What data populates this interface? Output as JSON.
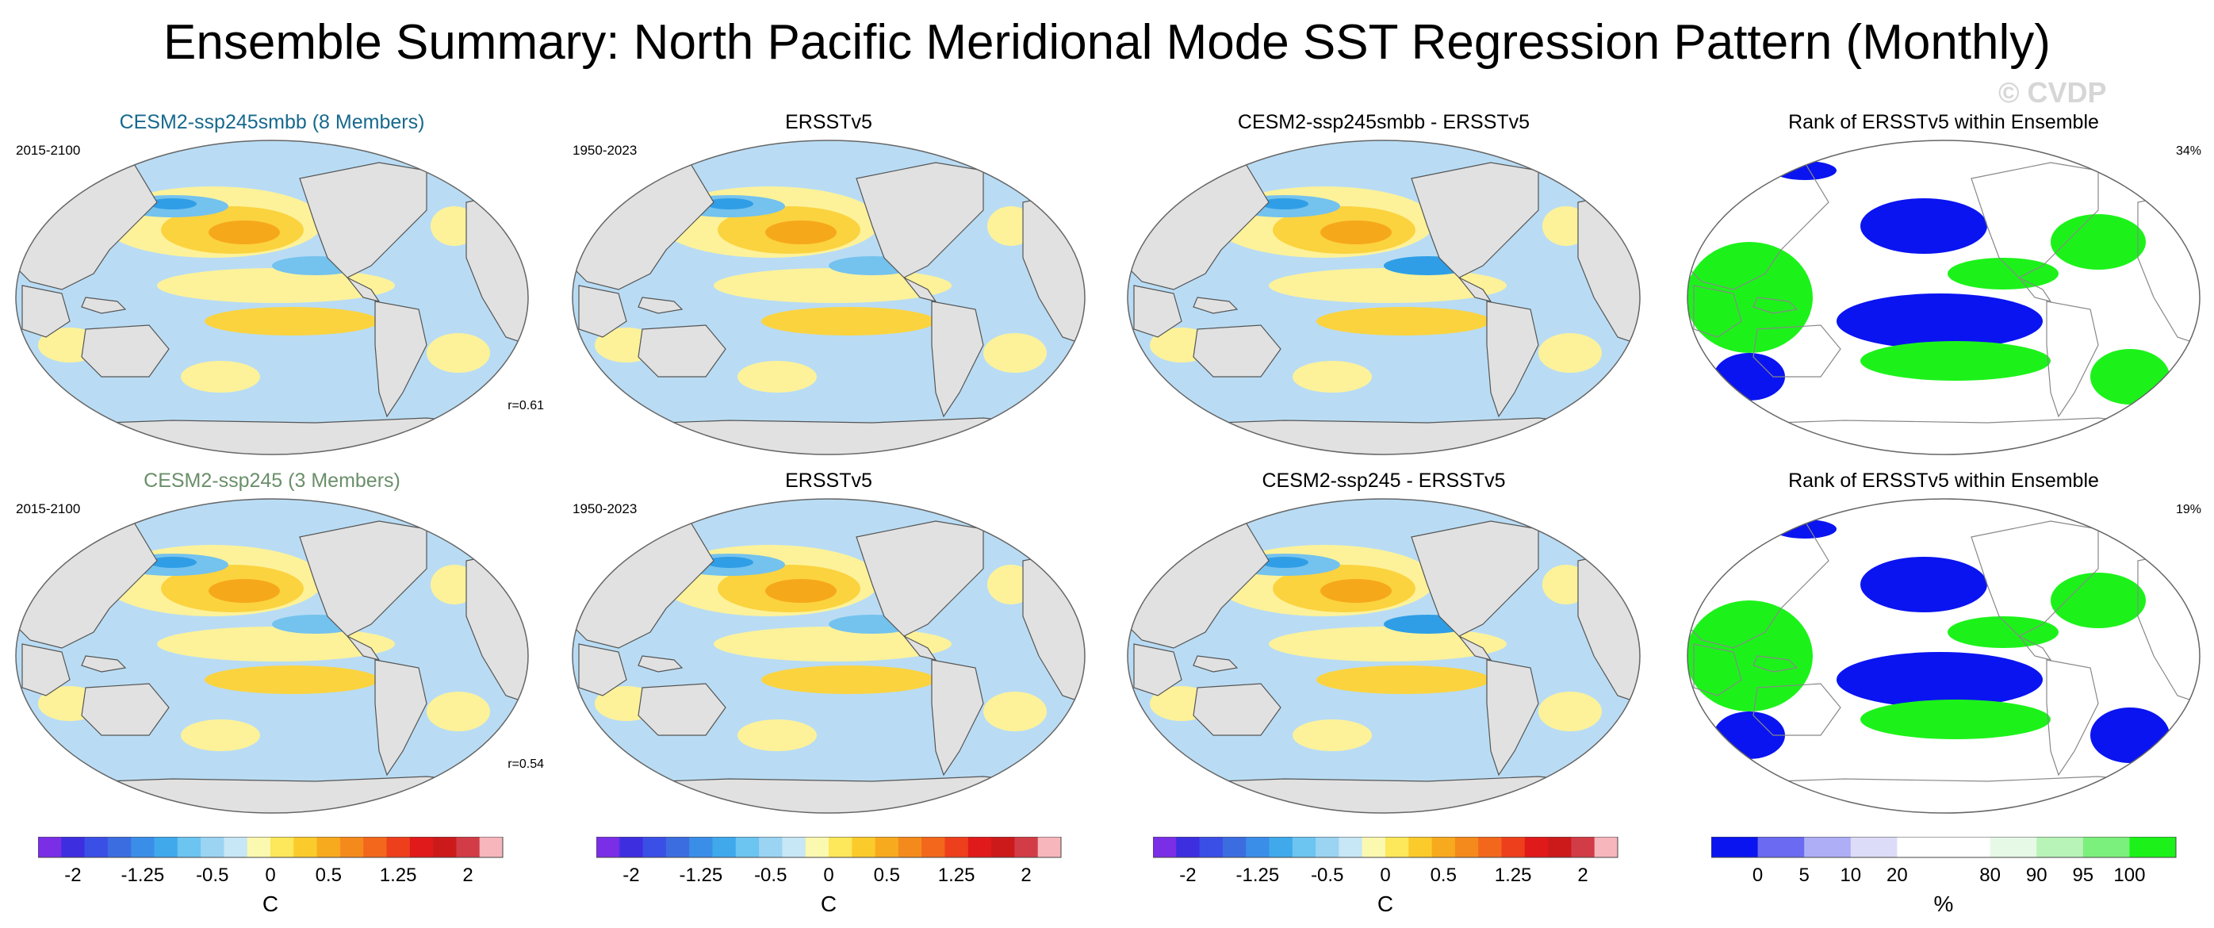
{
  "title": "Ensemble Summary: North Pacific Meridional Mode SST Regression Pattern (Monthly)",
  "watermark": "© CVDP",
  "colors": {
    "ocean_neg_light": "#b9dcf4",
    "ocean_neg_mid": "#74c2ee",
    "ocean_neg_dark": "#2f9ee6",
    "ocean_pos_light": "#fdf29a",
    "ocean_pos_mid": "#fbd33f",
    "ocean_pos_dark": "#f6a81b",
    "land": "#e1e1e1",
    "rank_low": "#0a14f0",
    "rank_high": "#1cf21a",
    "rank_mid": "#ffffff"
  },
  "rows": [
    {
      "panels": [
        {
          "title": "CESM2-ssp245smbb (8 Members)",
          "title_color": "#17698e",
          "period": "2015-2100",
          "stat": "r=0.61",
          "kind": "sst"
        },
        {
          "title": "ERSSTv5",
          "title_color": "#000000",
          "period": "1950-2023",
          "stat": "",
          "kind": "sst"
        },
        {
          "title": "CESM2-ssp245smbb - ERSSTv5",
          "title_color": "#000000",
          "period": "",
          "stat": "",
          "kind": "diff"
        },
        {
          "title": "Rank of ERSSTv5 within Ensemble",
          "title_color": "#000000",
          "period": "",
          "stat": "34%",
          "kind": "rank"
        }
      ]
    },
    {
      "panels": [
        {
          "title": "CESM2-ssp245 (3 Members)",
          "title_color": "#6a8f6a",
          "period": "2015-2100",
          "stat": "r=0.54",
          "kind": "sst"
        },
        {
          "title": "ERSSTv5",
          "title_color": "#000000",
          "period": "1950-2023",
          "stat": "",
          "kind": "sst"
        },
        {
          "title": "CESM2-ssp245 - ERSSTv5",
          "title_color": "#000000",
          "period": "",
          "stat": "",
          "kind": "diff"
        },
        {
          "title": "Rank of ERSSTv5 within Ensemble",
          "title_color": "#000000",
          "period": "",
          "stat": "19%",
          "kind": "rank"
        }
      ]
    }
  ],
  "colorbars": [
    {
      "unit": "C",
      "tick_labels": [
        "-2",
        "-1.25",
        "-0.5",
        "0",
        "0.5",
        "1.25",
        "2"
      ],
      "colors": [
        "#7a2ee6",
        "#3d2ee0",
        "#3a4fe6",
        "#3c6de0",
        "#3a8ee8",
        "#3fa9ec",
        "#6cc4f0",
        "#9bd4f2",
        "#c7e6f6",
        "#fbf8b0",
        "#fde75a",
        "#fbcb2c",
        "#f8aa1f",
        "#f58a1c",
        "#f2671c",
        "#ee3f1c",
        "#e01a1a",
        "#cc1a1a",
        "#d23c46",
        "#f6b6bc"
      ]
    },
    {
      "unit": "C",
      "tick_labels": [
        "-2",
        "-1.25",
        "-0.5",
        "0",
        "0.5",
        "1.25",
        "2"
      ],
      "colors": [
        "#7a2ee6",
        "#3d2ee0",
        "#3a4fe6",
        "#3c6de0",
        "#3a8ee8",
        "#3fa9ec",
        "#6cc4f0",
        "#9bd4f2",
        "#c7e6f6",
        "#fbf8b0",
        "#fde75a",
        "#fbcb2c",
        "#f8aa1f",
        "#f58a1c",
        "#f2671c",
        "#ee3f1c",
        "#e01a1a",
        "#cc1a1a",
        "#d23c46",
        "#f6b6bc"
      ]
    },
    {
      "unit": "C",
      "tick_labels": [
        "-2",
        "-1.25",
        "-0.5",
        "0",
        "0.5",
        "1.25",
        "2"
      ],
      "colors": [
        "#7a2ee6",
        "#3d2ee0",
        "#3a4fe6",
        "#3c6de0",
        "#3a8ee8",
        "#3fa9ec",
        "#6cc4f0",
        "#9bd4f2",
        "#c7e6f6",
        "#fbf8b0",
        "#fde75a",
        "#fbcb2c",
        "#f8aa1f",
        "#f58a1c",
        "#f2671c",
        "#ee3f1c",
        "#e01a1a",
        "#cc1a1a",
        "#d23c46",
        "#f6b6bc"
      ]
    },
    {
      "unit": "%",
      "tick_labels": [
        "0",
        "5",
        "10",
        "20",
        "80",
        "90",
        "95",
        "100"
      ],
      "colors": [
        "#0a14f0",
        "#6a6af2",
        "#aeaef6",
        "#dcdcf8",
        "#ffffff",
        "#ffffff",
        "#e6f9e6",
        "#b8f4b8",
        "#7cf07c",
        "#1cf21a"
      ]
    }
  ],
  "chart_data": {
    "type": "heatmap",
    "title": "Ensemble Summary: North Pacific Meridional Mode SST Regression Pattern (Monthly)",
    "projection": "Robinson-like, centered on Pacific",
    "sst_levels": [
      -2,
      -1.75,
      -1.5,
      -1.25,
      -1,
      -0.75,
      -0.5,
      -0.25,
      -0.1,
      0,
      0.1,
      0.25,
      0.5,
      0.75,
      1,
      1.25,
      1.5,
      1.75,
      2
    ],
    "sst_unit": "C",
    "rank_levels": [
      0,
      5,
      10,
      20,
      80,
      90,
      95,
      100
    ],
    "rank_unit": "%",
    "pattern_correlations": {
      "CESM2-ssp245smbb": 0.61,
      "CESM2-ssp245": 0.54
    },
    "rank_percent": {
      "CESM2-ssp245smbb": 34,
      "CESM2-ssp245": 19
    }
  }
}
